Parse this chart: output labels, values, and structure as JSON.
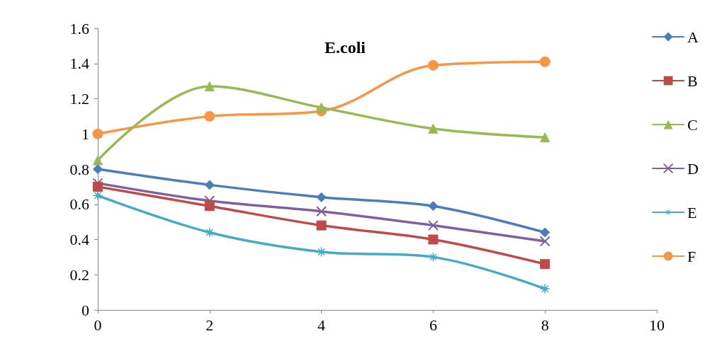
{
  "chart_data": {
    "type": "line",
    "title": "E.coli",
    "x": [
      0,
      2,
      4,
      6,
      8
    ],
    "series": [
      {
        "name": "A",
        "color": "#4a7ebb",
        "marker": "diamond",
        "values": [
          0.8,
          0.71,
          0.64,
          0.59,
          0.44
        ]
      },
      {
        "name": "B",
        "color": "#be4b48",
        "marker": "square",
        "values": [
          0.7,
          0.59,
          0.48,
          0.4,
          0.26
        ]
      },
      {
        "name": "C",
        "color": "#98b954",
        "marker": "triangle",
        "values": [
          0.85,
          1.27,
          1.15,
          1.03,
          0.98
        ]
      },
      {
        "name": "D",
        "color": "#7d60a0",
        "marker": "cross",
        "values": [
          0.72,
          0.62,
          0.56,
          0.48,
          0.39
        ]
      },
      {
        "name": "E",
        "color": "#46aac5",
        "marker": "star",
        "values": [
          0.65,
          0.44,
          0.33,
          0.3,
          0.12
        ]
      },
      {
        "name": "F",
        "color": "#f79646",
        "marker": "circle",
        "values": [
          1.0,
          1.1,
          1.13,
          1.39,
          1.41
        ]
      }
    ],
    "xlim": [
      0,
      10
    ],
    "xticks": [
      0,
      2,
      4,
      6,
      8,
      10
    ],
    "ylim": [
      0,
      1.6
    ],
    "yticks": [
      0,
      0.2,
      0.4,
      0.6,
      0.8,
      1,
      1.2,
      1.4,
      1.6
    ],
    "grid": false,
    "legend": "right",
    "line_style": "solid"
  }
}
